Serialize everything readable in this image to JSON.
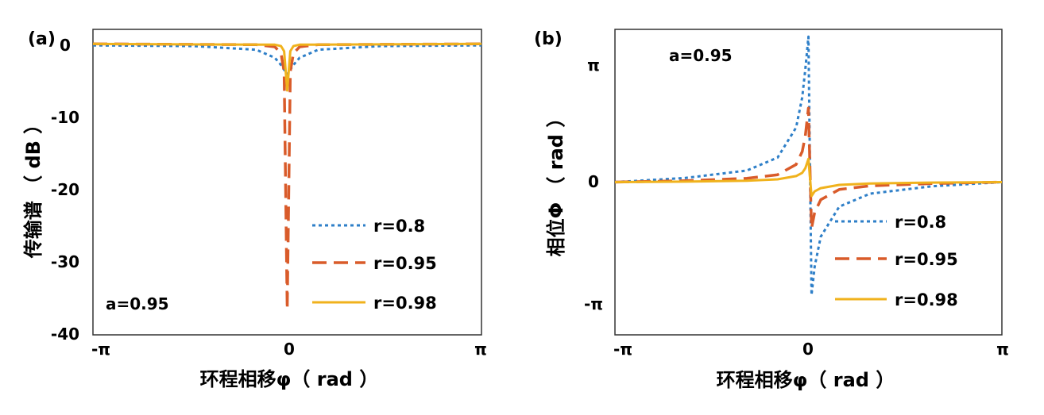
{
  "panels": [
    {
      "label": "(a)",
      "ylabel": "传输谱 （ dB ）",
      "xlabel": "环程相移φ（ rad ）",
      "annotation": "a=0.95",
      "xticks": [
        "-π",
        "0",
        "π"
      ],
      "yticks": [
        "0",
        "-10",
        "-20",
        "-30",
        "-40"
      ]
    },
    {
      "label": "(b)",
      "ylabel": "相位Φ （ rad ）",
      "xlabel": "环程相移φ（ rad ）",
      "annotation": "a=0.95",
      "xticks": [
        "-π",
        "0",
        "π"
      ],
      "yticks": [
        "π",
        "0",
        "-π"
      ]
    }
  ],
  "legend": [
    {
      "label": "r=0.8"
    },
    {
      "label": "r=0.95"
    },
    {
      "label": "r=0.98"
    }
  ],
  "colors": {
    "r08": "#2E7FC8",
    "r095": "#D95B2A",
    "r098": "#F0B21C"
  },
  "chart_data": [
    {
      "type": "line",
      "title": "",
      "xlabel": "环程相移φ（ rad ）",
      "ylabel": "传输谱 （ dB ）",
      "xlim": [
        -3.1416,
        3.1416
      ],
      "ylim": [
        -40,
        2
      ],
      "parameter": "a=0.95",
      "series": [
        {
          "name": "r=0.8",
          "style": "dotted",
          "x": [
            -3.1416,
            -1.5,
            -0.5,
            -0.2,
            -0.1,
            0,
            0.1,
            0.2,
            0.5,
            1.5,
            3.1416
          ],
          "y": [
            -0.2,
            -0.3,
            -0.8,
            -1.9,
            -2.9,
            -4.2,
            -2.9,
            -1.9,
            -0.8,
            -0.3,
            -0.2
          ]
        },
        {
          "name": "r=0.95",
          "style": "dashed",
          "x": [
            -3.1416,
            -0.5,
            -0.2,
            -0.1,
            -0.05,
            0,
            0.05,
            0.1,
            0.2,
            0.5,
            3.1416
          ],
          "y": [
            0,
            -0.1,
            -0.4,
            -1.3,
            -3.8,
            -36.5,
            -3.8,
            -1.3,
            -0.4,
            -0.1,
            0
          ]
        },
        {
          "name": "r=0.98",
          "style": "solid",
          "x": [
            -3.1416,
            -0.5,
            -0.2,
            -0.1,
            -0.05,
            0,
            0.05,
            0.1,
            0.2,
            0.5,
            3.1416
          ],
          "y": [
            0,
            -0.1,
            -0.1,
            -0.3,
            -1.0,
            -6.4,
            -1.0,
            -0.3,
            -0.1,
            -0.1,
            0
          ]
        }
      ]
    },
    {
      "type": "line",
      "title": "",
      "xlabel": "环程相移φ（ rad ）",
      "ylabel": "相位Φ （ rad ）",
      "xlim": [
        -3.1416,
        3.1416
      ],
      "ylim": [
        -3.3,
        3.3
      ],
      "parameter": "a=0.95",
      "series": [
        {
          "name": "r=0.8",
          "style": "dotted",
          "x": [
            -3.1416,
            -2.0,
            -1.0,
            -0.5,
            -0.2,
            -0.1,
            -0.05,
            0,
            0.05,
            0.1,
            0.2,
            0.5,
            1.0,
            2.0,
            3.1416
          ],
          "y": [
            0,
            0.09,
            0.25,
            0.53,
            1.18,
            1.83,
            2.44,
            3.14,
            -2.44,
            -1.83,
            -1.18,
            -0.53,
            -0.25,
            -0.09,
            0
          ]
        },
        {
          "name": "r=0.95",
          "style": "dashed",
          "x": [
            -3.1416,
            -2.0,
            -1.0,
            -0.5,
            -0.2,
            -0.1,
            -0.05,
            0,
            0.05,
            0.1,
            0.2,
            0.5,
            1.0,
            2.0,
            3.1416
          ],
          "y": [
            0,
            0.03,
            0.08,
            0.16,
            0.38,
            0.66,
            1.0,
            1.6,
            -1.0,
            -0.66,
            -0.38,
            -0.16,
            -0.08,
            -0.03,
            0
          ]
        },
        {
          "name": "r=0.98",
          "style": "solid",
          "x": [
            -3.1416,
            -2.0,
            -1.0,
            -0.5,
            -0.2,
            -0.1,
            -0.05,
            0,
            0.05,
            0.1,
            0.2,
            0.5,
            1.0,
            2.0,
            3.1416
          ],
          "y": [
            0,
            0.01,
            0.03,
            0.06,
            0.13,
            0.2,
            0.3,
            0.5,
            -0.3,
            -0.2,
            -0.13,
            -0.06,
            -0.03,
            -0.01,
            0
          ]
        }
      ]
    }
  ]
}
